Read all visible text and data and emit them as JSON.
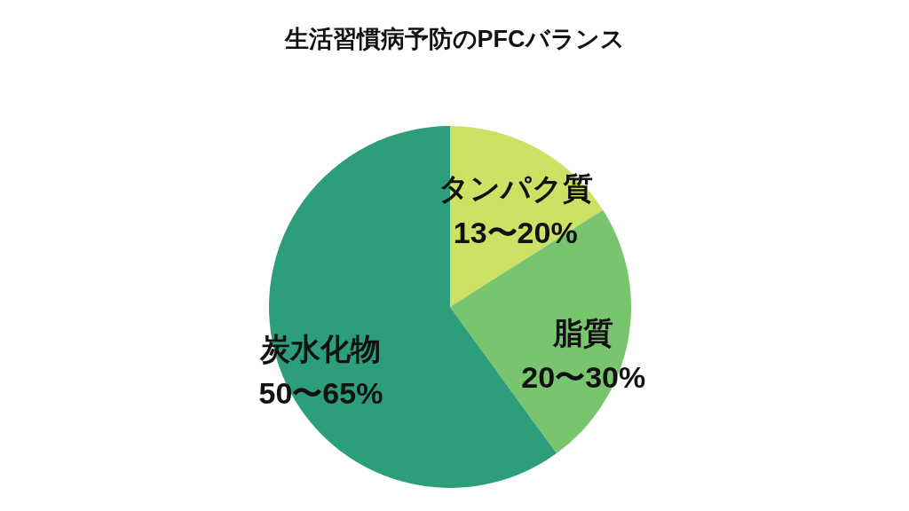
{
  "chart_data": {
    "type": "pie",
    "title": "生活習慣病予防のPFCバランス",
    "categories": [
      "タンパク質\n13〜20%",
      "脂質\n20〜30%",
      "炭水化物\n50〜65%"
    ],
    "values": [
      16,
      24,
      60
    ],
    "colors": [
      "#cde265",
      "#78c46f",
      "#2c9e7b"
    ]
  }
}
